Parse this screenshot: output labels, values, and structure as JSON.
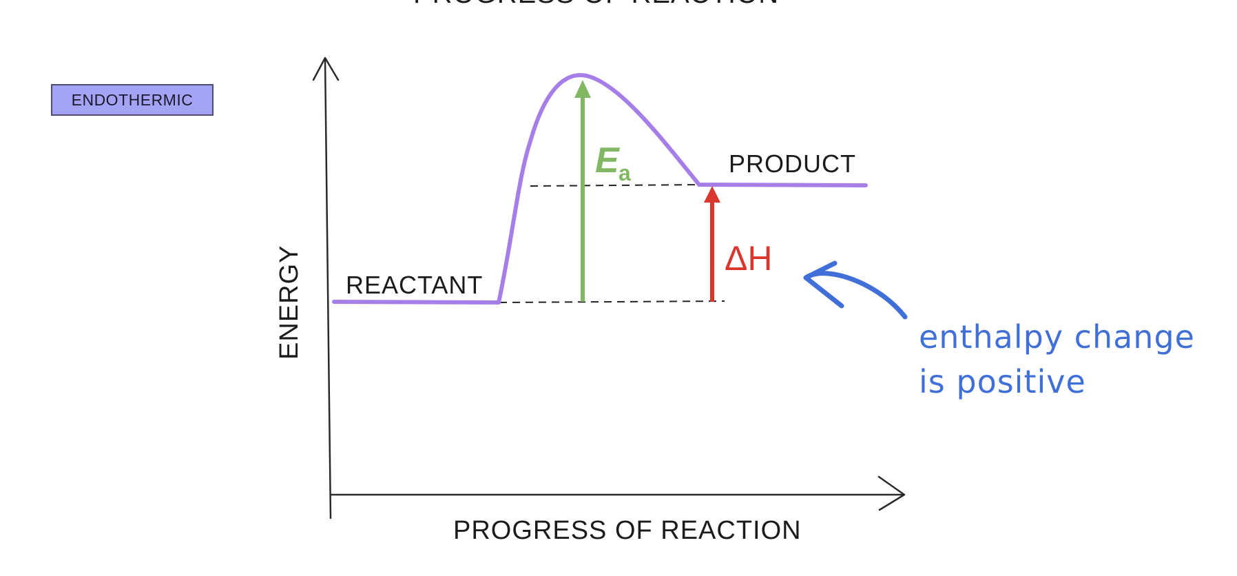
{
  "top_heading_partial": "PROGRESS OF REACTION",
  "badge": {
    "label": "ENDOTHERMIC"
  },
  "axes": {
    "y_label": "ENERGY",
    "x_label": "PROGRESS OF REACTION"
  },
  "levels": {
    "reactant_label": "REACTANT",
    "product_label": "PRODUCT"
  },
  "arrows": {
    "activation_symbol": "E",
    "activation_subscript": "a",
    "enthalpy_symbol": "ΔH"
  },
  "annotation": {
    "line1": "enthalpy change",
    "line2": "is positive"
  },
  "colors": {
    "curve": "#a67ee8",
    "activation_arrow": "#82b764",
    "enthalpy_arrow": "#d9362d",
    "annotation": "#3f6fd7",
    "badge_fill": "#a5a3f4"
  }
}
